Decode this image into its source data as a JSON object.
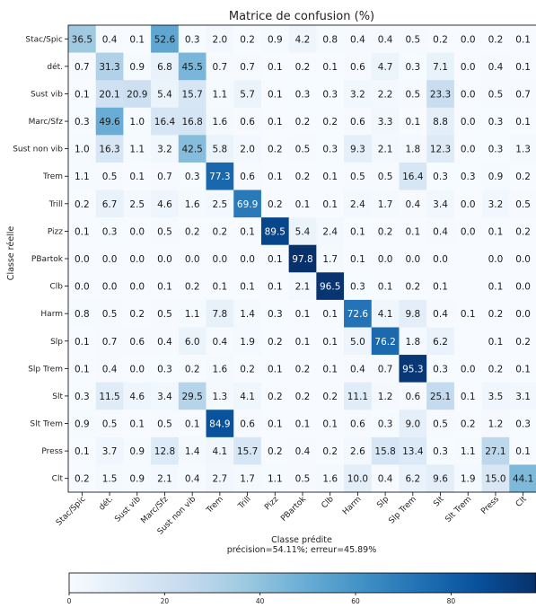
{
  "chart_data": {
    "type": "heatmap",
    "title": "Matrice de confusion (%)",
    "xlabel": "Classe prédite",
    "xlabel_sub": "précision=54.11%; erreur=45.89%",
    "ylabel": "Classe réelle",
    "classes": [
      "Stac/Spic",
      "dét.",
      "Sust vib",
      "Marc/Sfz",
      "Sust non vib",
      "Trem",
      "Trill",
      "Pizz",
      "PBartok",
      "Clb",
      "Harm",
      "Slp",
      "Slp Trem",
      "Slt",
      "Slt Trem",
      "Press",
      "Clt"
    ],
    "values": [
      [
        36.5,
        0.4,
        0.1,
        52.6,
        0.3,
        2.0,
        0.2,
        0.9,
        4.2,
        0.8,
        0.4,
        0.4,
        0.5,
        0.2,
        0.0,
        0.2,
        0.1
      ],
      [
        0.7,
        31.3,
        0.9,
        6.8,
        45.5,
        0.7,
        0.7,
        0.1,
        0.2,
        0.1,
        0.6,
        4.7,
        0.3,
        7.1,
        0.0,
        0.4,
        0.1
      ],
      [
        0.1,
        20.1,
        20.9,
        5.4,
        15.7,
        1.1,
        5.7,
        0.1,
        0.3,
        0.3,
        3.2,
        2.2,
        0.5,
        23.3,
        0.0,
        0.5,
        0.7
      ],
      [
        0.3,
        49.6,
        1.0,
        16.4,
        16.8,
        1.6,
        0.6,
        0.1,
        0.2,
        0.2,
        0.6,
        3.3,
        0.1,
        8.8,
        0.0,
        0.3,
        0.1
      ],
      [
        1.0,
        16.3,
        1.1,
        3.2,
        42.5,
        5.8,
        2.0,
        0.2,
        0.5,
        0.3,
        9.3,
        2.1,
        1.8,
        12.3,
        0.0,
        0.3,
        1.3
      ],
      [
        1.1,
        0.5,
        0.1,
        0.7,
        0.3,
        77.3,
        0.6,
        0.1,
        0.2,
        0.1,
        0.5,
        0.5,
        16.4,
        0.3,
        0.3,
        0.9,
        0.2
      ],
      [
        0.2,
        6.7,
        2.5,
        4.6,
        1.6,
        2.5,
        69.9,
        0.2,
        0.1,
        0.1,
        2.4,
        1.7,
        0.4,
        3.4,
        0.0,
        3.2,
        0.5
      ],
      [
        0.1,
        0.3,
        0.0,
        0.5,
        0.2,
        0.2,
        0.1,
        89.5,
        5.4,
        2.4,
        0.1,
        0.2,
        0.1,
        0.4,
        0.0,
        0.1,
        0.2
      ],
      [
        0.0,
        0.0,
        0.0,
        0.0,
        0.0,
        0.0,
        0.0,
        0.1,
        97.8,
        1.7,
        0.1,
        0.0,
        0.0,
        0.0,
        null,
        0.0,
        0.0
      ],
      [
        0.0,
        0.0,
        0.0,
        0.1,
        0.2,
        0.1,
        0.1,
        0.1,
        2.1,
        96.5,
        0.3,
        0.1,
        0.2,
        0.1,
        null,
        0.1,
        0.0
      ],
      [
        0.8,
        0.5,
        0.2,
        0.5,
        1.1,
        7.8,
        1.4,
        0.3,
        0.1,
        0.1,
        72.6,
        4.1,
        9.8,
        0.4,
        0.1,
        0.2,
        0.0
      ],
      [
        0.1,
        0.7,
        0.6,
        0.4,
        6.0,
        0.4,
        1.9,
        0.2,
        0.1,
        0.1,
        5.0,
        76.2,
        1.8,
        6.2,
        null,
        0.1,
        0.2
      ],
      [
        0.1,
        0.4,
        0.0,
        0.3,
        0.2,
        1.6,
        0.2,
        0.1,
        0.2,
        0.1,
        0.4,
        0.7,
        95.3,
        0.3,
        0.0,
        0.2,
        0.1
      ],
      [
        0.3,
        11.5,
        4.6,
        3.4,
        29.5,
        1.3,
        4.1,
        0.2,
        0.2,
        0.2,
        11.1,
        1.2,
        0.6,
        25.1,
        0.1,
        3.5,
        3.1
      ],
      [
        0.9,
        0.5,
        0.1,
        0.5,
        0.1,
        84.9,
        0.6,
        0.1,
        0.1,
        0.1,
        0.6,
        0.3,
        9.0,
        0.5,
        0.2,
        1.2,
        0.3
      ],
      [
        0.1,
        3.7,
        0.9,
        12.8,
        1.4,
        4.1,
        15.7,
        0.2,
        0.4,
        0.2,
        2.6,
        15.8,
        13.4,
        0.3,
        1.1,
        27.1,
        0.1
      ],
      [
        0.2,
        1.5,
        0.9,
        2.1,
        0.4,
        2.7,
        1.7,
        1.1,
        0.5,
        1.6,
        10.0,
        0.4,
        6.2,
        9.6,
        1.9,
        15.0,
        44.1
      ]
    ],
    "colorbar": {
      "range": [
        0,
        97.8
      ],
      "ticks": [
        0,
        20,
        40,
        60,
        80
      ],
      "colors": [
        "#f7fbff",
        "#deebf7",
        "#c6dbef",
        "#9ecae1",
        "#6baed6",
        "#4292c6",
        "#2171b5",
        "#08519c",
        "#08306b"
      ]
    },
    "grid": false,
    "legend": "none"
  }
}
